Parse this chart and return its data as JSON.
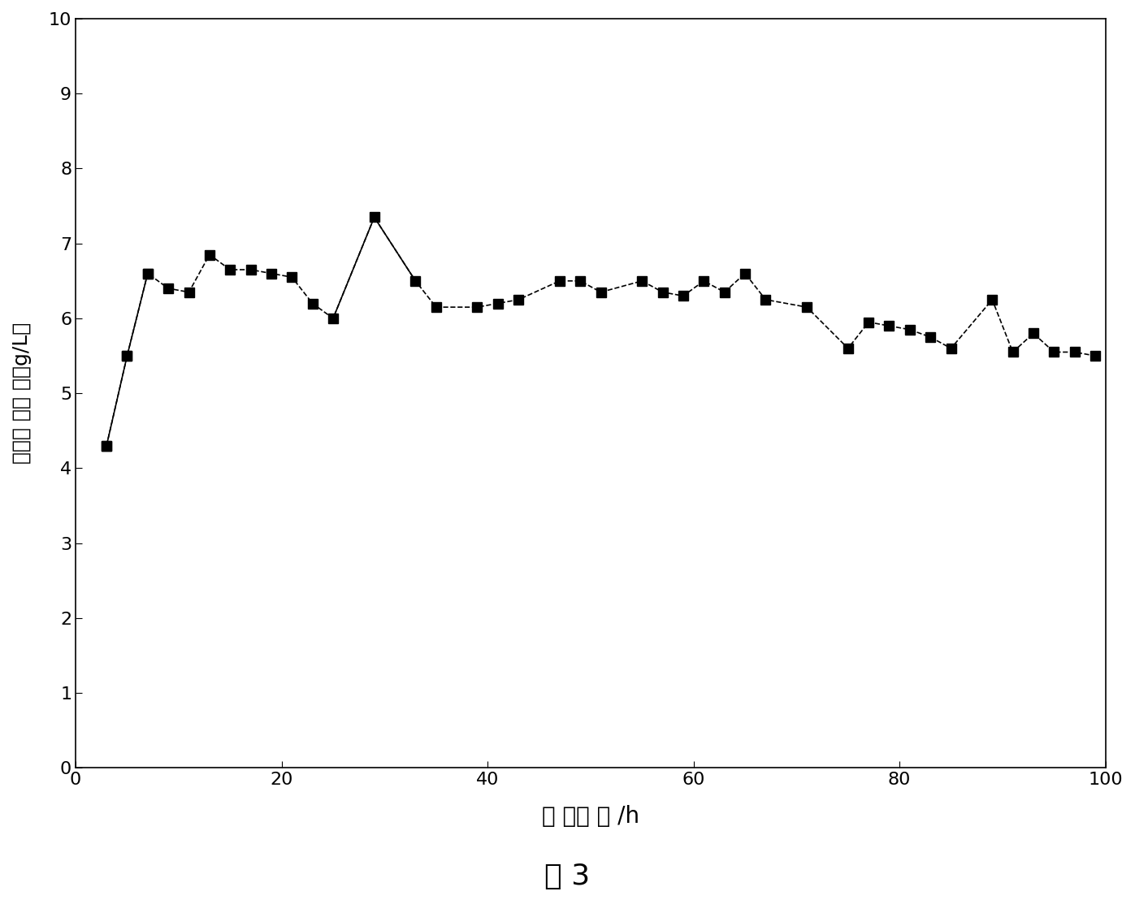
{
  "x_data": [
    3,
    5,
    7,
    9,
    11,
    13,
    15,
    17,
    19,
    21,
    23,
    25,
    29,
    33,
    35,
    39,
    41,
    43,
    47,
    49,
    51,
    55,
    57,
    59,
    61,
    63,
    65,
    67,
    71,
    75,
    77,
    79,
    81,
    83,
    85,
    89,
    91,
    93,
    95,
    97,
    99
  ],
  "y_data": [
    4.3,
    5.5,
    6.6,
    6.4,
    6.35,
    6.85,
    6.65,
    6.65,
    6.6,
    6.55,
    6.2,
    6.0,
    7.35,
    6.5,
    6.15,
    6.15,
    6.2,
    6.25,
    6.5,
    6.5,
    6.35,
    6.5,
    6.35,
    6.3,
    6.5,
    6.35,
    6.6,
    6.25,
    6.15,
    5.6,
    5.95,
    5.9,
    5.85,
    5.75,
    5.6,
    6.25,
    5.55,
    5.8,
    5.55,
    5.55,
    5.5
  ],
  "xlabel": "运 转时 间 /h",
  "ylabel": "如化剂 活性 ／（g/L）",
  "title_bottom": "图 3",
  "xlim": [
    0,
    100
  ],
  "ylim": [
    0,
    10
  ],
  "xticks": [
    0,
    20,
    40,
    60,
    80,
    100
  ],
  "yticks": [
    0,
    1,
    2,
    3,
    4,
    5,
    6,
    7,
    8,
    9,
    10
  ],
  "line_color": "#000000",
  "marker": "s",
  "marker_color": "#000000",
  "marker_size": 8,
  "line_style": "--",
  "initial_line_style": "-",
  "bg_color": "#ffffff"
}
